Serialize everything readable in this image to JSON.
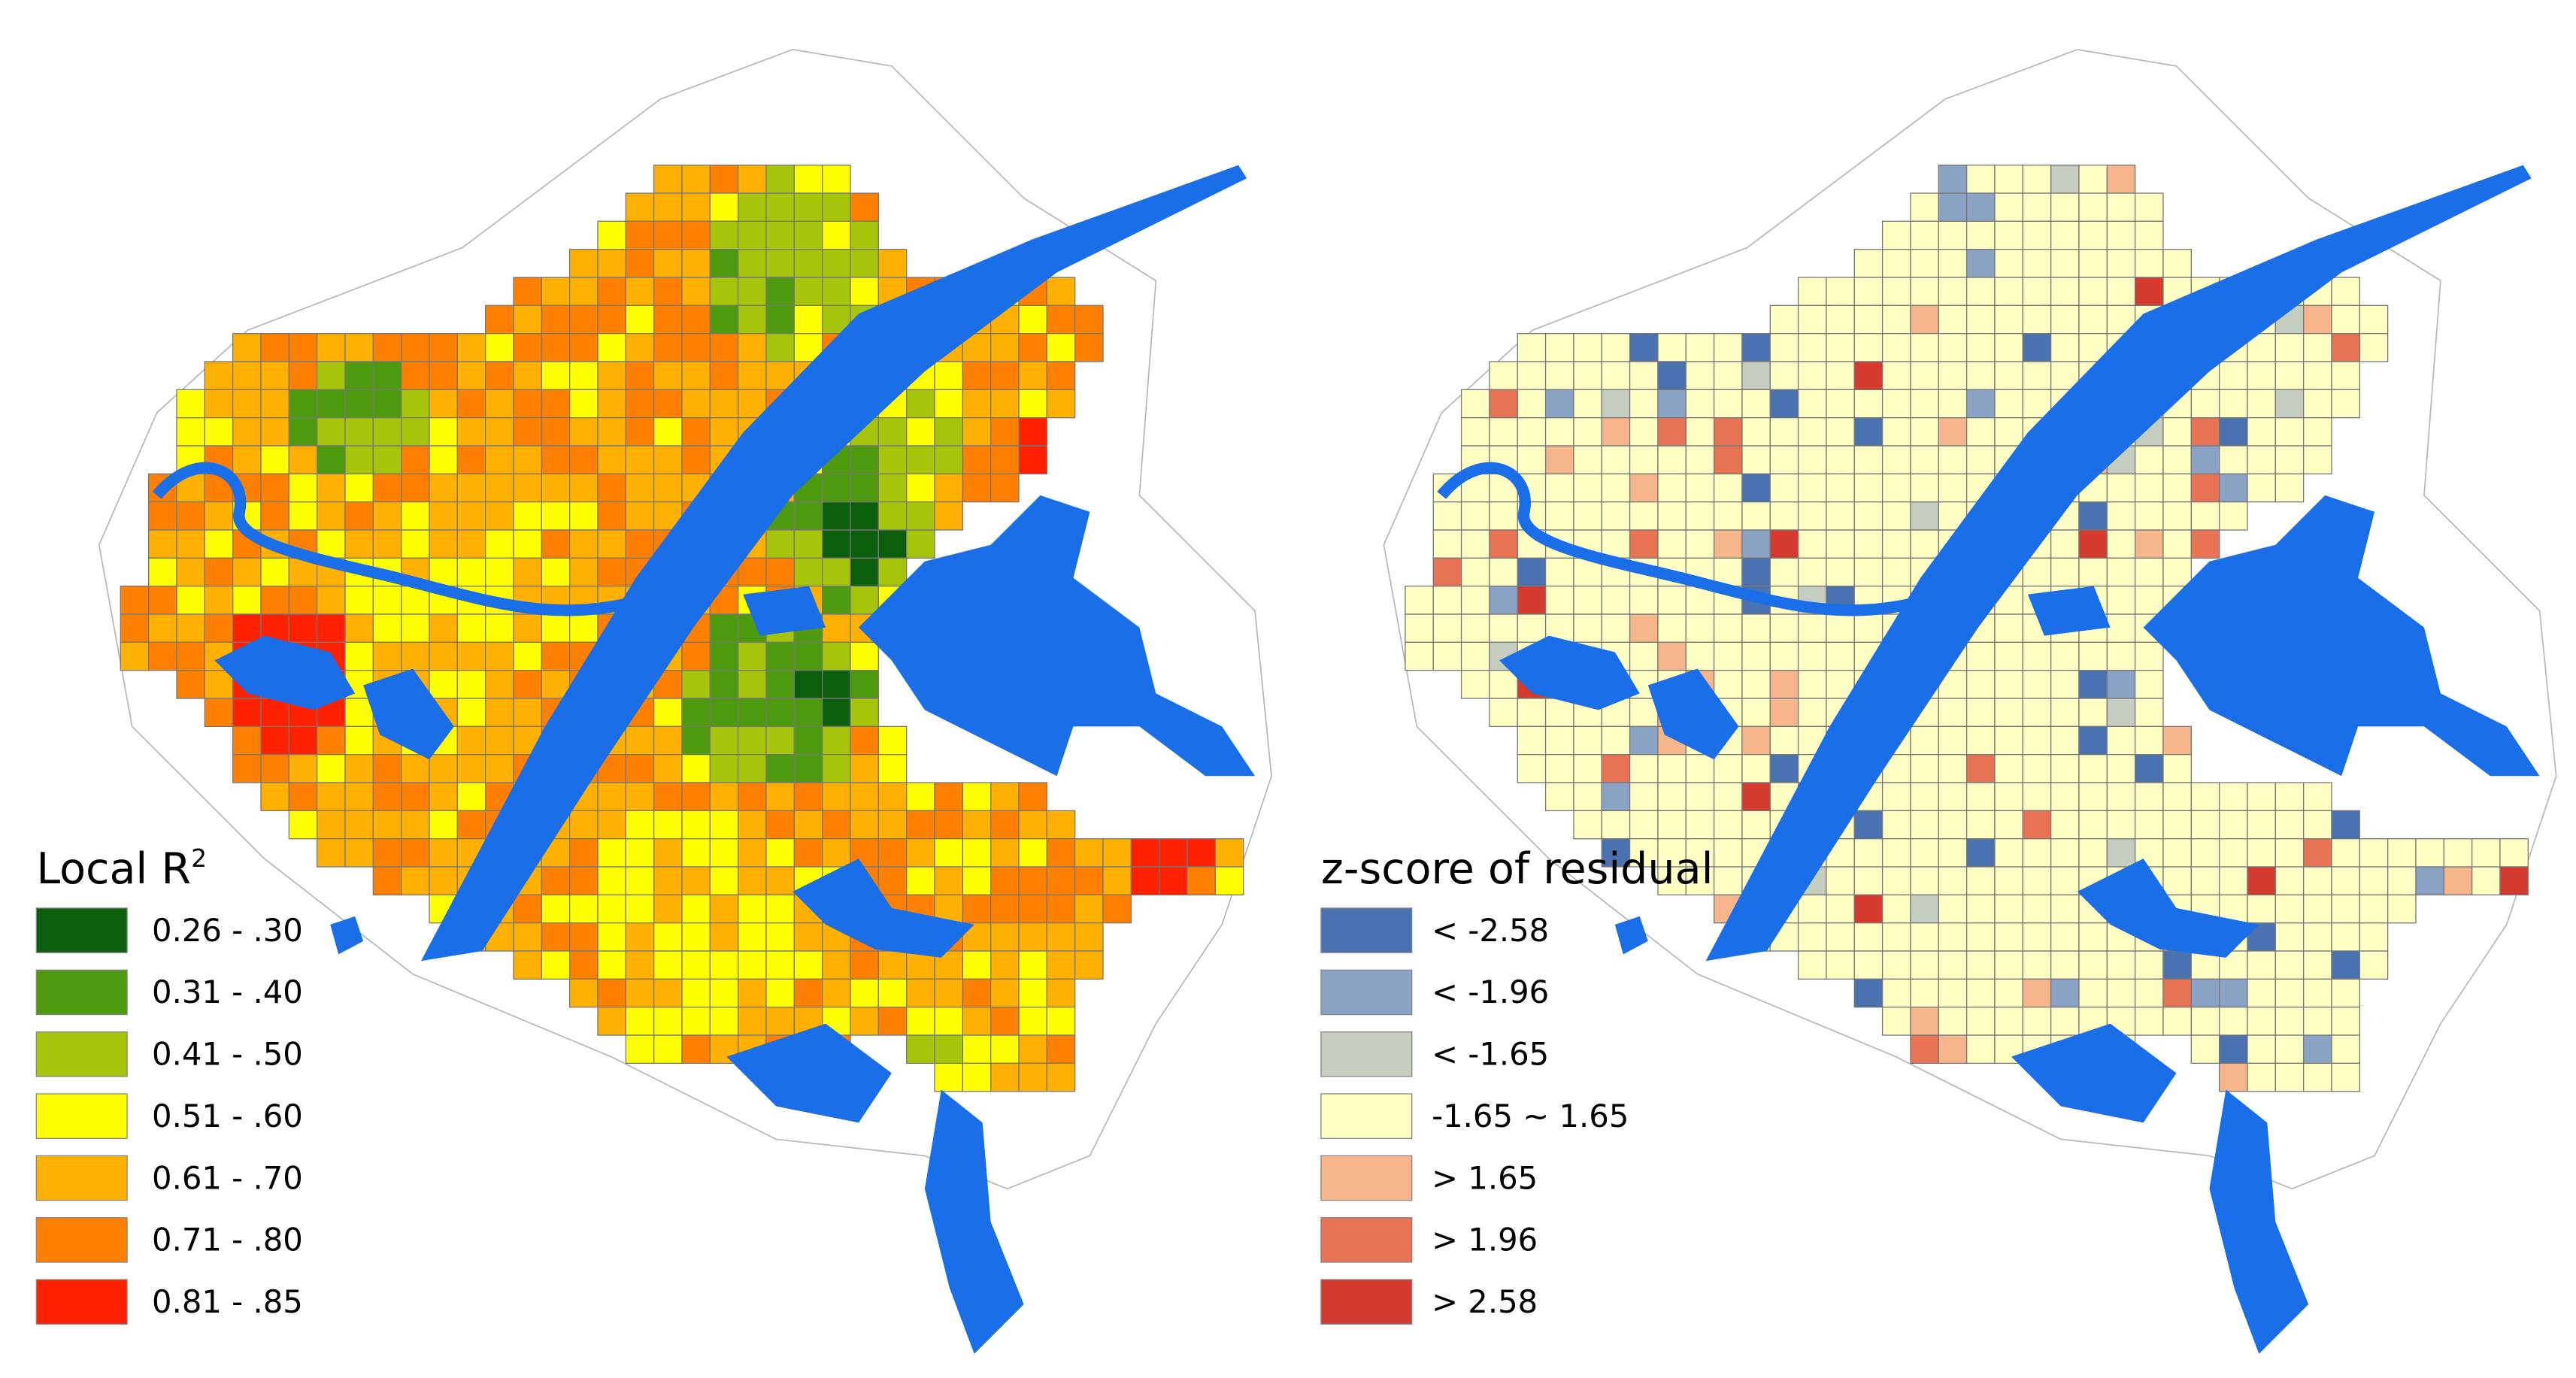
{
  "maps": [
    {
      "legend": {
        "title": "Local R",
        "title_superscript": "2",
        "items": [
          {
            "label": "0.26 - .30",
            "color": "#0b5e0b"
          },
          {
            "label": "0.31 - .40",
            "color": "#4e9a0e"
          },
          {
            "label": "0.41 - .50",
            "color": "#a5c40a"
          },
          {
            "label": "0.51 - .60",
            "color": "#ffff00"
          },
          {
            "label": "0.61 - .70",
            "color": "#ffb000"
          },
          {
            "label": "0.71 - .80",
            "color": "#ff7f00"
          },
          {
            "label": "0.81 - .85",
            "color": "#ff2000"
          }
        ]
      }
    },
    {
      "legend": {
        "title": "z-score of residual",
        "items": [
          {
            "label": "< -2.58",
            "color": "#4a72b0"
          },
          {
            "label": "< -1.96",
            "color": "#8aa2c4"
          },
          {
            "label": "< -1.65",
            "color": "#c5cdc0"
          },
          {
            "label": "-1.65 ~ 1.65",
            "color": "#ffffc4"
          },
          {
            "label": "> 1.65",
            "color": "#f7b58c"
          },
          {
            "label": "> 1.96",
            "color": "#e87355"
          },
          {
            "label": "> 2.58",
            "color": "#d63a2e"
          }
        ]
      }
    }
  ]
}
